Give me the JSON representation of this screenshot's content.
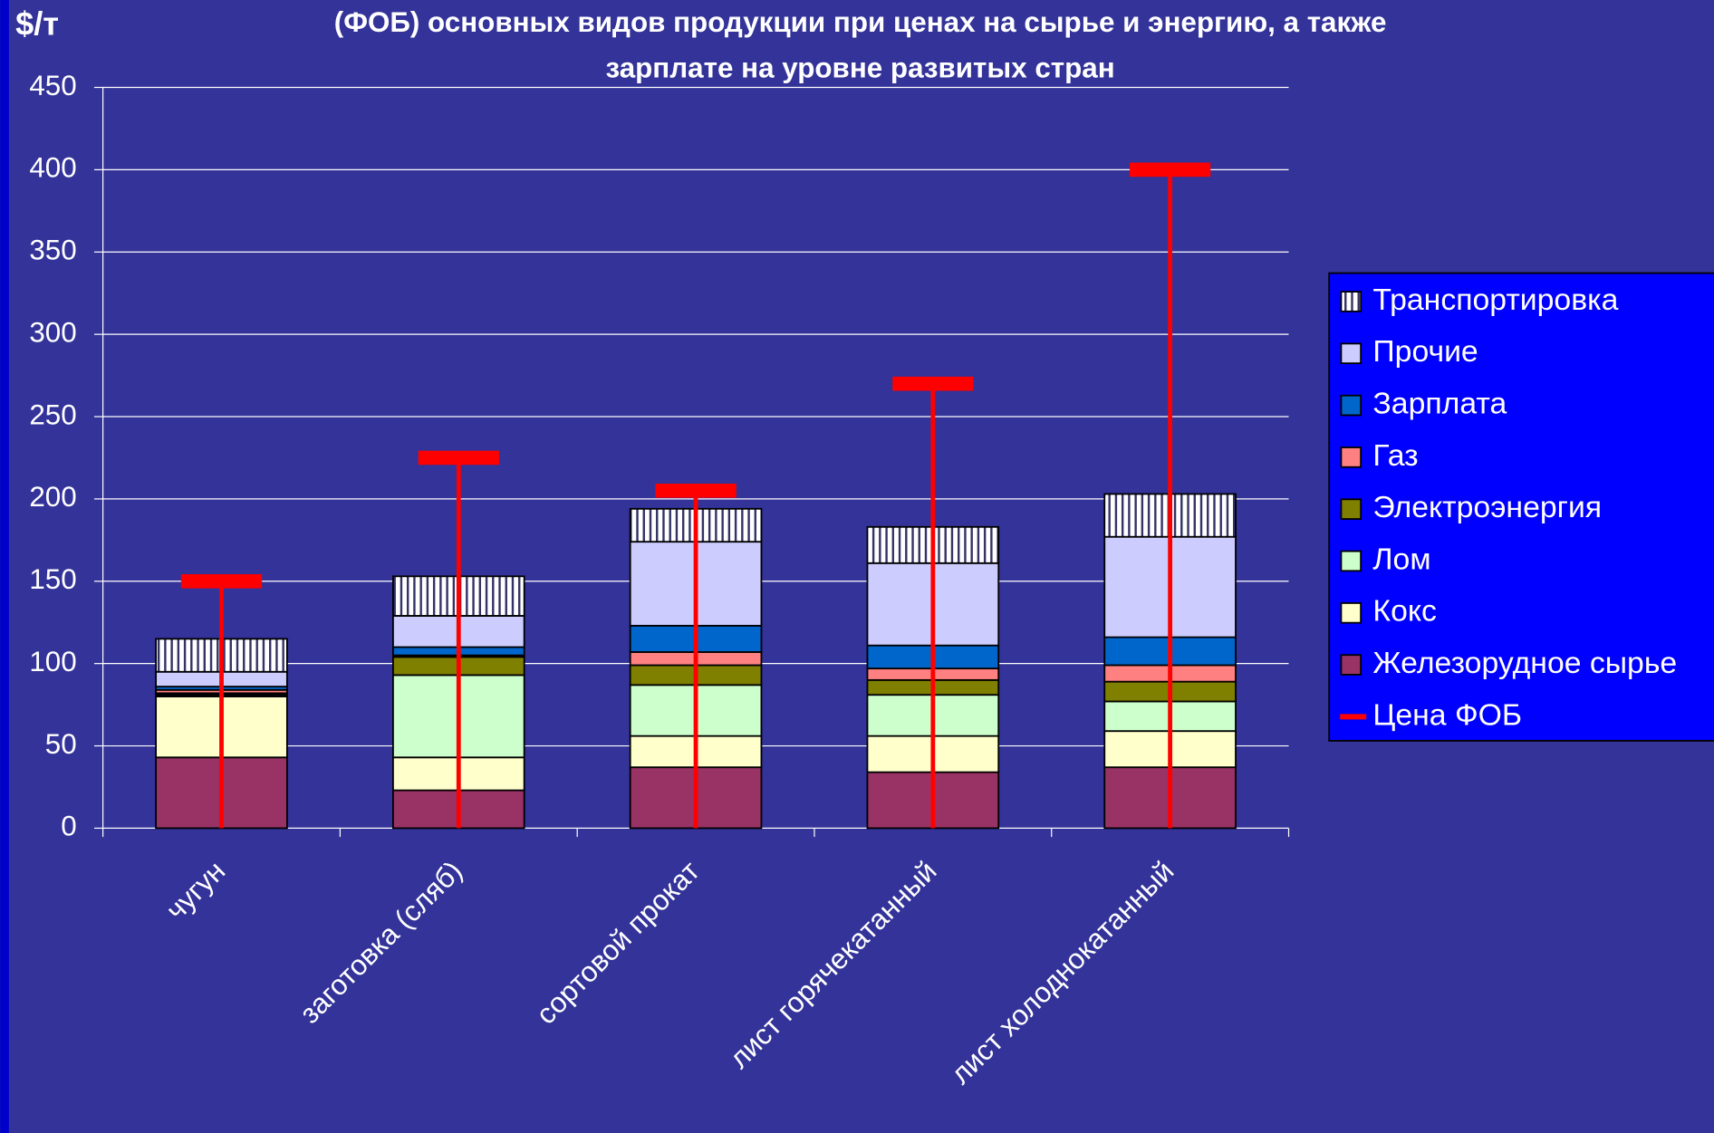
{
  "chart_data": {
    "type": "stacked_bar",
    "title": [
      "(ФОБ) основных видов продукции при ценах на сырье и энергию, а также",
      "зарплате на уровне развитых стран"
    ],
    "y_label": "$/т",
    "categories": [
      "чугун",
      "заготовка (сляб)",
      "сортовой прокат",
      "лист горячекатанный",
      "лист холоднокатанный"
    ],
    "series": [
      {
        "name": "Железорудное сырье",
        "color": "#993366",
        "values": [
          43,
          23,
          37,
          34,
          37
        ]
      },
      {
        "name": "Кокс",
        "color": "#ffffcc",
        "values": [
          37,
          20,
          19,
          22,
          22
        ]
      },
      {
        "name": "Лом",
        "color": "#ccffcc",
        "values": [
          1,
          50,
          31,
          25,
          18
        ]
      },
      {
        "name": "Электроэнергия",
        "color": "#808000",
        "values": [
          1,
          11,
          12,
          9,
          12
        ]
      },
      {
        "name": "Газ",
        "color": "#ff8080",
        "values": [
          2,
          1,
          8,
          7,
          10
        ]
      },
      {
        "name": "Зарплата",
        "color": "#0066cc",
        "values": [
          2,
          5,
          16,
          14,
          17
        ]
      },
      {
        "name": "Прочие",
        "color": "#ccccff",
        "values": [
          9,
          19,
          51,
          50,
          61
        ]
      },
      {
        "name": "Транспортировка",
        "color": "#ffffff",
        "hatch": true,
        "values": [
          20,
          24,
          20,
          22,
          26
        ]
      }
    ],
    "fob": {
      "name": "Цена ФОБ",
      "color": "#ff0000",
      "values": [
        150,
        225,
        205,
        270,
        400
      ]
    },
    "ylim": [
      0,
      450
    ],
    "yticks": [
      0,
      50,
      100,
      150,
      200,
      250,
      300,
      350,
      400,
      450
    ],
    "grid": true,
    "legend": "right"
  }
}
